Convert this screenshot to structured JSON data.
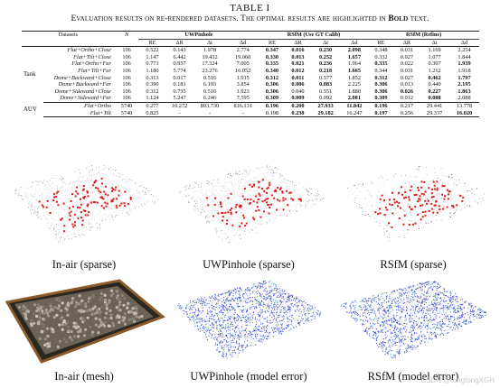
{
  "table": {
    "number": "TABLE I",
    "caption_prefix": "Evaluation results on re-rendered datasets. The optimal results are highlighted in ",
    "caption_bold": "Bold",
    "caption_suffix": " text.",
    "headers": {
      "datasets": "Datasets",
      "n": "N",
      "group_uwpinhole": "UWPinhole",
      "group_rsfm_gt": "RSfM (Use GT Calib)",
      "group_rsfm_refine": "RSfM (Refine)",
      "re": "RE",
      "dR": "ΔR",
      "dt": "Δt",
      "dd": "Δd"
    },
    "groups": [
      {
        "name": "Tank",
        "rows": [
          {
            "ds": "Flat+Ortho+Close",
            "n": "106",
            "u": [
              "0.522",
              "0.143",
              "1.978",
              "2.774"
            ],
            "g": [
              "0.347",
              "0.016",
              "0.230",
              "2.098"
            ],
            "r": [
              "0.348",
              "0.031",
              "1.169",
              "2.254"
            ],
            "bg": [
              1,
              1,
              1,
              1
            ],
            "br": [
              0,
              0,
              0,
              0
            ]
          },
          {
            "ds": "Flat+Tilt+Close",
            "n": "106",
            "u": [
              "1.147",
              "6.442",
              "19.432",
              "19.060"
            ],
            "g": [
              "0.330",
              "0.013",
              "0.252",
              "1.657"
            ],
            "r": [
              "0.332",
              "0.027",
              "1.077",
              "1.844"
            ],
            "bg": [
              1,
              1,
              1,
              1
            ],
            "br": [
              0,
              0,
              0,
              0
            ]
          },
          {
            "ds": "Flat+Ortho+Far",
            "n": "106",
            "u": [
              "0.773",
              "0.957",
              "17.324",
              "7.005"
            ],
            "g": [
              "0.335",
              "0.021",
              "0.236",
              "1.964"
            ],
            "r": [
              "0.335",
              "0.022",
              "0.307",
              "1.939"
            ],
            "bg": [
              1,
              1,
              1,
              0
            ],
            "br": [
              1,
              0,
              0,
              1
            ]
          },
          {
            "ds": "Flat+Tilt+Far",
            "n": "106",
            "u": [
              "1.180",
              "5.774",
              "23.276",
              "16.052"
            ],
            "g": [
              "0.340",
              "0.012",
              "0.218",
              "1.665"
            ],
            "r": [
              "0.344",
              "0.031",
              "1.212",
              "1.918"
            ],
            "bg": [
              1,
              1,
              1,
              1
            ],
            "br": [
              0,
              0,
              0,
              0
            ]
          },
          {
            "ds": "Dome+Backward+Close",
            "n": "106",
            "u": [
              "0.313",
              "0.017",
              "0.516",
              "1.915"
            ],
            "g": [
              "0.312",
              "0.011",
              "0.577",
              "1.852"
            ],
            "r": [
              "0.312",
              "0.027",
              "0.462",
              "1.797"
            ],
            "bg": [
              1,
              1,
              0,
              0
            ],
            "br": [
              1,
              0,
              1,
              1
            ]
          },
          {
            "ds": "Dome+Backward+Far",
            "n": "106",
            "u": [
              "0.390",
              "0.181",
              "6.193",
              "3.854"
            ],
            "g": [
              "0.306",
              "0.006",
              "0.083",
              "2.225"
            ],
            "r": [
              "0.306",
              "0.013",
              "0.440",
              "2.195"
            ],
            "bg": [
              1,
              1,
              1,
              0
            ],
            "br": [
              1,
              0,
              0,
              1
            ]
          },
          {
            "ds": "Dome+Sidewand+Close",
            "n": "106",
            "u": [
              "0.312",
              "0.735",
              "0.510",
              "1.923"
            ],
            "g": [
              "0.306",
              "0.040",
              "0.551",
              "1.880"
            ],
            "r": [
              "0.306",
              "0.026",
              "0.227",
              "1.863"
            ],
            "bg": [
              1,
              0,
              0,
              0
            ],
            "br": [
              1,
              1,
              1,
              1
            ]
          },
          {
            "ds": "Dome+Sideward+Far",
            "n": "106",
            "u": [
              "1.124",
              "5.247",
              "6.246",
              "7.595"
            ],
            "g": [
              "0.309",
              "0.009",
              "0.092",
              "2.081"
            ],
            "r": [
              "0.309",
              "0.012",
              "0.088",
              "2.088"
            ],
            "bg": [
              1,
              1,
              0,
              1
            ],
            "br": [
              1,
              0,
              1,
              0
            ]
          }
        ]
      },
      {
        "name": "AUV",
        "rows": [
          {
            "ds": "Flat+Ortho",
            "n": "5740",
            "u": [
              "0.277",
              "10.272",
              "893.730",
              "816.131"
            ],
            "g": [
              "0.196",
              "0.200",
              "27.933",
              "11.842"
            ],
            "r": [
              "0.196",
              "0.217",
              "29.441",
              "13.778"
            ],
            "bg": [
              1,
              1,
              1,
              1
            ],
            "br": [
              1,
              0,
              0,
              0
            ]
          },
          {
            "ds": "Flat+Tilt",
            "n": "5740",
            "u": [
              "0.825",
              "-",
              "-",
              "-"
            ],
            "g": [
              "0.198",
              "0.238",
              "29.182",
              "16.247"
            ],
            "r": [
              "0.197",
              "0.256",
              "29.337",
              "16.020"
            ],
            "bg": [
              0,
              1,
              1,
              0
            ],
            "br": [
              1,
              0,
              0,
              1
            ]
          }
        ]
      }
    ]
  },
  "figures": [
    {
      "label": "In-air (sparse)"
    },
    {
      "label": "UWPinhole (sparse)"
    },
    {
      "label": "RSfM (sparse)"
    },
    {
      "label": "In-air (mesh)"
    },
    {
      "label": "UWPinhole (model error)"
    },
    {
      "label": "RSfM (model error)"
    }
  ],
  "watermark": "CSDN @tongtongXGH"
}
